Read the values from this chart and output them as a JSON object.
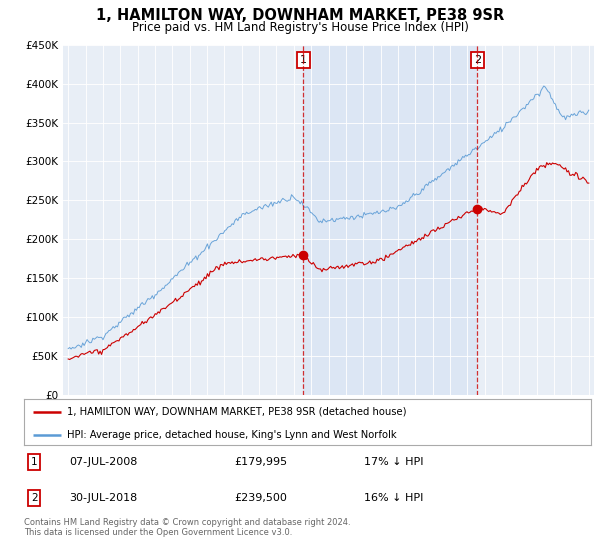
{
  "title": "1, HAMILTON WAY, DOWNHAM MARKET, PE38 9SR",
  "subtitle": "Price paid vs. HM Land Registry's House Price Index (HPI)",
  "legend_line1": "1, HAMILTON WAY, DOWNHAM MARKET, PE38 9SR (detached house)",
  "legend_line2": "HPI: Average price, detached house, King's Lynn and West Norfolk",
  "footnote": "Contains HM Land Registry data © Crown copyright and database right 2024.\nThis data is licensed under the Open Government Licence v3.0.",
  "marker1_date": "07-JUL-2008",
  "marker1_price": "£179,995",
  "marker1_hpi": "17% ↓ HPI",
  "marker2_date": "30-JUL-2018",
  "marker2_price": "£239,500",
  "marker2_hpi": "16% ↓ HPI",
  "red_color": "#cc0000",
  "blue_color": "#5b9bd5",
  "shade_color": "#dce6f4",
  "background_color": "#e8eef6",
  "ylim": [
    0,
    450000
  ],
  "yticks": [
    0,
    50000,
    100000,
    150000,
    200000,
    250000,
    300000,
    350000,
    400000,
    450000
  ],
  "ytick_labels": [
    "£0",
    "£50K",
    "£100K",
    "£150K",
    "£200K",
    "£250K",
    "£300K",
    "£350K",
    "£400K",
    "£450K"
  ],
  "marker1_year": 2008.54,
  "marker2_year": 2018.58,
  "marker1_red_price": 179995,
  "marker2_red_price": 239500,
  "xmin": 1995,
  "xmax": 2025
}
